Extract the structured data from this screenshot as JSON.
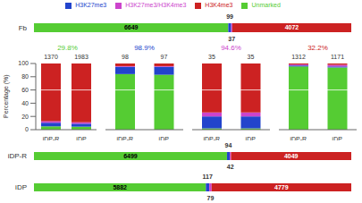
{
  "chart_data": [
    {
      "type": "bar",
      "orientation": "horizontal",
      "stacked": true,
      "categories": [
        "Fb"
      ],
      "series": [
        {
          "name": "Unmarked",
          "color": "#55CC33",
          "values": [
            6649
          ]
        },
        {
          "name": "H3K27me3",
          "color": "#2244CC",
          "values": [
            99
          ]
        },
        {
          "name": "H3K27me3/H3K4me3",
          "color": "#CC44CC",
          "values": [
            37
          ]
        },
        {
          "name": "H3K4me3",
          "color": "#CC2222",
          "values": [
            4072
          ]
        }
      ],
      "data_labels": true,
      "tick_labels": "y",
      "legend": "top"
    },
    {
      "type": "bar",
      "stacked": true,
      "categories": [
        "iDP-R",
        "iDP"
      ],
      "series": [
        {
          "name": "Unmarked",
          "color": "#55CC33",
          "values": [
            5.0,
            4.5
          ]
        },
        {
          "name": "H3K27me3",
          "color": "#2244CC",
          "values": [
            5.5,
            4.5
          ]
        },
        {
          "name": "H3K27me3/H3K4me3",
          "color": "#CC44CC",
          "values": [
            2.5,
            2.0
          ]
        },
        {
          "name": "H3K4me3",
          "color": "#CC2222",
          "values": [
            87.0,
            89.0
          ]
        }
      ],
      "ylim": [
        0,
        100
      ],
      "yticks": [
        0,
        20,
        40,
        60,
        80,
        100
      ],
      "ylabel": "Percentage (%)",
      "counts": [
        1370,
        1983
      ],
      "hline": 60,
      "annotations": [
        {
          "text": "29.8%",
          "color": "#55CC33"
        }
      ]
    },
    {
      "type": "bar",
      "stacked": true,
      "categories": [
        "iDP-R",
        "iDP"
      ],
      "series": [
        {
          "name": "Unmarked",
          "color": "#55CC33",
          "values": [
            84.0,
            83.0
          ]
        },
        {
          "name": "H3K27me3",
          "color": "#2244CC",
          "values": [
            11.0,
            12.0
          ]
        },
        {
          "name": "H3K27me3/H3K4me3",
          "color": "#CC44CC",
          "values": [
            1.0,
            1.0
          ]
        },
        {
          "name": "H3K4me3",
          "color": "#CC2222",
          "values": [
            4.0,
            4.0
          ]
        }
      ],
      "ylim": [
        0,
        100
      ],
      "tick_labels": "x",
      "counts": [
        98,
        97
      ],
      "hline": 60,
      "annotations": [
        {
          "text": "98.9%",
          "color": "#2244CC"
        }
      ]
    },
    {
      "type": "bar",
      "stacked": true,
      "categories": [
        "iDP-R",
        "iDP"
      ],
      "series": [
        {
          "name": "Unmarked",
          "color": "#55CC33",
          "values": [
            2.0,
            2.0
          ]
        },
        {
          "name": "H3K27me3",
          "color": "#2244CC",
          "values": [
            18.0,
            18.0
          ]
        },
        {
          "name": "H3K27me3/H3K4me3",
          "color": "#CC44CC",
          "values": [
            6.0,
            6.0
          ]
        },
        {
          "name": "H3K4me3",
          "color": "#CC2222",
          "values": [
            74.0,
            74.0
          ]
        }
      ],
      "ylim": [
        0,
        100
      ],
      "tick_labels": "x",
      "counts": [
        35,
        35
      ],
      "hline": 60,
      "annotations": [
        {
          "text": "94.6%",
          "color": "#CC44CC"
        }
      ]
    },
    {
      "type": "bar",
      "stacked": true,
      "categories": [
        "iDP-R",
        "iDP"
      ],
      "series": [
        {
          "name": "Unmarked",
          "color": "#55CC33",
          "values": [
            95.5,
            94.0
          ]
        },
        {
          "name": "H3K27me3",
          "color": "#2244CC",
          "values": [
            1.5,
            1.5
          ]
        },
        {
          "name": "H3K27me3/H3K4me3",
          "color": "#CC44CC",
          "values": [
            1.5,
            2.5
          ]
        },
        {
          "name": "H3K4me3",
          "color": "#CC2222",
          "values": [
            1.5,
            2.0
          ]
        }
      ],
      "ylim": [
        0,
        100
      ],
      "tick_labels": "x",
      "counts": [
        1312,
        1171
      ],
      "hline": 60,
      "annotations": [
        {
          "text": "32.2%",
          "color": "#CC2222"
        }
      ]
    },
    {
      "type": "bar",
      "orientation": "horizontal",
      "stacked": true,
      "categories": [
        "iDP-R"
      ],
      "series": [
        {
          "name": "Unmarked",
          "color": "#55CC33",
          "values": [
            6499
          ]
        },
        {
          "name": "H3K27me3",
          "color": "#2244CC",
          "values": [
            94
          ]
        },
        {
          "name": "H3K27me3/H3K4me3",
          "color": "#CC44CC",
          "values": [
            42
          ]
        },
        {
          "name": "H3K4me3",
          "color": "#CC2222",
          "values": [
            4049
          ]
        }
      ],
      "data_labels": true,
      "tick_labels": "y"
    },
    {
      "type": "bar",
      "orientation": "horizontal",
      "stacked": true,
      "categories": [
        "iDP"
      ],
      "series": [
        {
          "name": "Unmarked",
          "color": "#55CC33",
          "values": [
            5882
          ]
        },
        {
          "name": "H3K27me3",
          "color": "#2244CC",
          "values": [
            117
          ]
        },
        {
          "name": "H3K27me3/H3K4me3",
          "color": "#CC44CC",
          "values": [
            79
          ]
        },
        {
          "name": "H3K4me3",
          "color": "#CC2222",
          "values": [
            4779
          ]
        }
      ],
      "data_labels": true,
      "tick_labels": "y"
    }
  ]
}
